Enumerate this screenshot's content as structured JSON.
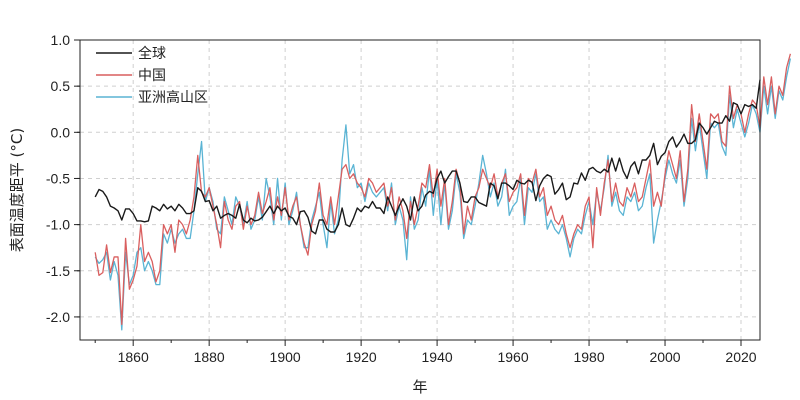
{
  "chart_data": {
    "type": "line",
    "xlabel": "年",
    "ylabel": "表面温度距平 (°C)",
    "xlim": [
      1846,
      2025
    ],
    "ylim": [
      -2.25,
      1.0
    ],
    "xticks": [
      1860,
      1880,
      1900,
      1920,
      1940,
      1960,
      1980,
      2000,
      2020
    ],
    "yticks": [
      -2.0,
      -1.5,
      -1.0,
      -0.5,
      0.0,
      0.5,
      1.0
    ],
    "ytick_labels": [
      "-2.0",
      "-1.5",
      "-1.0",
      "-0.5",
      "0.0",
      "0.5",
      "1.0"
    ],
    "grid": true,
    "legend_position": "top-left",
    "series": [
      {
        "name": "全球",
        "color": "#1a1a1a",
        "x_start": 1850,
        "values": [
          -0.7,
          -0.62,
          -0.64,
          -0.7,
          -0.8,
          -0.82,
          -0.85,
          -0.95,
          -0.83,
          -0.83,
          -0.88,
          -0.96,
          -0.96,
          -0.97,
          -0.96,
          -0.8,
          -0.82,
          -0.85,
          -0.78,
          -0.83,
          -0.8,
          -0.85,
          -0.78,
          -0.82,
          -0.88,
          -0.88,
          -0.85,
          -0.6,
          -0.64,
          -0.75,
          -0.74,
          -0.85,
          -0.8,
          -0.93,
          -0.9,
          -0.88,
          -0.9,
          -0.93,
          -0.78,
          -0.95,
          -0.98,
          -0.93,
          -0.96,
          -0.95,
          -0.92,
          -0.86,
          -0.8,
          -0.88,
          -0.8,
          -0.85,
          -0.82,
          -0.91,
          -0.93,
          -1.0,
          -0.86,
          -0.85,
          -0.92,
          -1.07,
          -1.1,
          -0.95,
          -0.95,
          -1.05,
          -1.08,
          -1.08,
          -1.0,
          -0.82,
          -1.0,
          -1.02,
          -0.93,
          -0.82,
          -0.86,
          -0.8,
          -0.82,
          -0.75,
          -0.82,
          -0.82,
          -0.88,
          -0.7,
          -0.8,
          -0.9,
          -0.8,
          -0.72,
          -0.8,
          -0.95,
          -0.7,
          -0.85,
          -0.8,
          -0.68,
          -0.64,
          -0.66,
          -0.5,
          -0.42,
          -0.55,
          -0.48,
          -0.42,
          -0.42,
          -0.55,
          -0.75,
          -0.76,
          -0.7,
          -0.7,
          -0.76,
          -0.78,
          -0.8,
          -0.55,
          -0.58,
          -0.72,
          -0.55,
          -0.55,
          -0.58,
          -0.62,
          -0.52,
          -0.55,
          -0.56,
          -0.52,
          -0.54,
          -0.74,
          -0.58,
          -0.5,
          -0.46,
          -0.48,
          -0.67,
          -0.62,
          -0.55,
          -0.73,
          -0.7,
          -0.55,
          -0.56,
          -0.44,
          -0.52,
          -0.4,
          -0.38,
          -0.42,
          -0.44,
          -0.4,
          -0.43,
          -0.28,
          -0.42,
          -0.28,
          -0.42,
          -0.5,
          -0.37,
          -0.32,
          -0.45,
          -0.3,
          -0.3,
          -0.25,
          -0.12,
          -0.35,
          -0.26,
          -0.22,
          -0.1,
          -0.05,
          -0.16,
          -0.1,
          -0.02,
          -0.12,
          -0.12,
          -0.08,
          0.1,
          0.05,
          -0.02,
          0.05,
          0.12,
          0.1,
          0.1,
          0.18,
          0.12,
          0.32,
          0.3,
          0.2,
          0.3,
          0.28,
          0.3,
          0.26,
          0.57
        ]
      },
      {
        "name": "中国",
        "color": "#d95f5f",
        "x_start": 1850,
        "values": [
          -1.3,
          -1.55,
          -1.52,
          -1.22,
          -1.52,
          -1.35,
          -1.35,
          -2.08,
          -1.15,
          -1.7,
          -1.6,
          -1.45,
          -1.0,
          -1.4,
          -1.3,
          -1.4,
          -1.62,
          -1.5,
          -1.0,
          -1.1,
          -1.0,
          -1.3,
          -0.95,
          -1.0,
          -1.1,
          -0.95,
          -0.7,
          -0.25,
          -0.65,
          -0.7,
          -0.6,
          -0.8,
          -1.0,
          -1.25,
          -0.75,
          -0.95,
          -1.05,
          -0.8,
          -0.75,
          -1.05,
          -0.8,
          -1.0,
          -0.9,
          -0.65,
          -0.88,
          -0.75,
          -0.6,
          -0.95,
          -0.7,
          -0.9,
          -0.6,
          -0.95,
          -0.8,
          -0.7,
          -1.0,
          -1.2,
          -1.33,
          -1.0,
          -0.85,
          -0.55,
          -0.9,
          -1.0,
          -0.7,
          -1.0,
          -0.7,
          -0.4,
          -0.35,
          -0.5,
          -0.45,
          -0.55,
          -0.6,
          -0.7,
          -0.5,
          -0.55,
          -0.65,
          -0.6,
          -0.55,
          -0.8,
          -0.6,
          -0.95,
          -0.7,
          -0.85,
          -1.15,
          -0.75,
          -1.0,
          -0.8,
          -0.55,
          -0.6,
          -0.35,
          -0.7,
          -0.4,
          -0.8,
          -0.5,
          -1.0,
          -0.75,
          -0.4,
          -0.55,
          -1.1,
          -0.8,
          -0.95,
          -0.7,
          -0.6,
          -0.4,
          -0.5,
          -0.6,
          -0.45,
          -0.7,
          -0.55,
          -0.45,
          -0.75,
          -0.65,
          -0.6,
          -0.45,
          -0.9,
          -0.5,
          -0.55,
          -0.4,
          -0.7,
          -0.6,
          -0.9,
          -0.8,
          -0.95,
          -1.0,
          -0.9,
          -1.1,
          -1.25,
          -1.1,
          -1.0,
          -1.05,
          -0.8,
          -0.7,
          -1.25,
          -0.6,
          -0.9,
          -0.55,
          -0.3,
          -0.75,
          -0.55,
          -0.75,
          -0.8,
          -0.6,
          -0.7,
          -0.55,
          -0.75,
          -0.7,
          -0.5,
          -0.3,
          -0.8,
          -0.65,
          -0.8,
          -0.45,
          -0.2,
          -0.35,
          -0.5,
          -0.2,
          -0.75,
          -0.4,
          0.3,
          -0.1,
          0.2,
          -0.1,
          -0.4,
          0.2,
          0.15,
          0.2,
          -0.1,
          -0.15,
          0.5,
          0.15,
          0.3,
          0.2,
          0.0,
          0.2,
          0.35,
          0.3,
          0.05,
          0.6,
          0.3,
          0.6,
          0.2,
          0.5,
          0.4,
          0.7,
          0.85
        ]
      },
      {
        "name": "亚洲高山区",
        "color": "#5ab4d4",
        "x_start": 1850,
        "values": [
          -1.35,
          -1.42,
          -1.38,
          -1.3,
          -1.6,
          -1.4,
          -1.55,
          -2.14,
          -1.3,
          -1.65,
          -1.55,
          -1.3,
          -1.25,
          -1.5,
          -1.4,
          -1.5,
          -1.65,
          -1.65,
          -1.1,
          -1.2,
          -1.05,
          -1.2,
          -1.1,
          -1.05,
          -1.15,
          -1.15,
          -0.85,
          -0.45,
          -0.1,
          -0.75,
          -0.6,
          -0.75,
          -1.05,
          -1.1,
          -0.7,
          -0.85,
          -1.0,
          -0.7,
          -0.8,
          -1.0,
          -0.75,
          -1.05,
          -0.95,
          -0.7,
          -0.95,
          -0.5,
          -0.7,
          -1.0,
          -0.5,
          -0.95,
          -0.55,
          -1.0,
          -0.85,
          -0.65,
          -1.0,
          -1.25,
          -1.25,
          -0.95,
          -0.8,
          -0.65,
          -1.0,
          -1.25,
          -0.75,
          -1.1,
          -0.95,
          -0.3,
          0.08,
          -0.45,
          -0.35,
          -0.6,
          -0.55,
          -0.75,
          -0.55,
          -0.65,
          -0.7,
          -0.65,
          -0.6,
          -0.85,
          -0.55,
          -1.0,
          -0.8,
          -0.95,
          -1.38,
          -0.7,
          -1.05,
          -0.95,
          -0.6,
          -0.8,
          -0.4,
          -0.9,
          -0.5,
          -1.0,
          -0.55,
          -1.05,
          -0.85,
          -0.45,
          -0.65,
          -1.15,
          -0.95,
          -1.0,
          -0.8,
          -0.55,
          -0.25,
          -0.45,
          -0.7,
          -0.55,
          -0.8,
          -0.7,
          -0.4,
          -0.9,
          -0.8,
          -0.75,
          -0.5,
          -1.0,
          -0.6,
          -0.65,
          -0.45,
          -0.75,
          -0.7,
          -1.05,
          -0.95,
          -1.05,
          -1.1,
          -1.0,
          -1.15,
          -1.35,
          -1.15,
          -1.05,
          -1.1,
          -0.9,
          -0.75,
          -1.0,
          -0.65,
          -0.85,
          -0.6,
          -0.25,
          -0.8,
          -0.65,
          -0.85,
          -0.9,
          -0.7,
          -0.75,
          -0.65,
          -0.85,
          -0.8,
          -0.6,
          -0.45,
          -1.2,
          -0.95,
          -0.75,
          -0.5,
          -0.3,
          -0.45,
          -0.55,
          -0.3,
          -0.8,
          -0.5,
          0.15,
          -0.2,
          0.1,
          -0.2,
          -0.5,
          0.1,
          0.05,
          0.1,
          -0.15,
          -0.25,
          0.4,
          0.05,
          0.25,
          0.1,
          -0.05,
          0.1,
          0.3,
          0.2,
          0.0,
          0.5,
          0.2,
          0.5,
          0.15,
          0.45,
          0.35,
          0.6,
          0.8
        ]
      }
    ]
  }
}
